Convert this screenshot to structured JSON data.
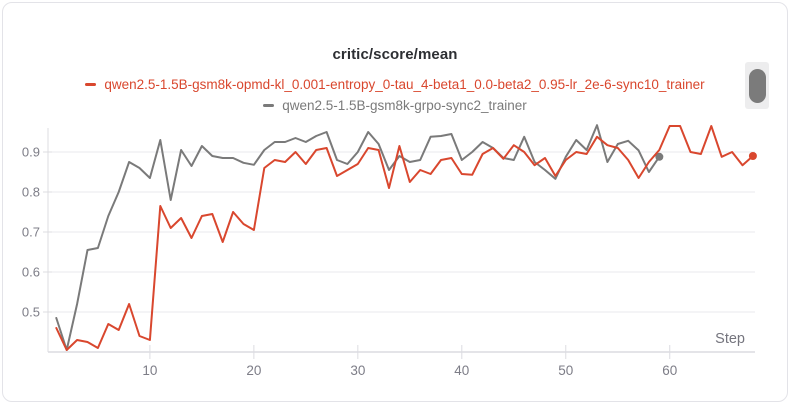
{
  "chart_data": {
    "type": "line",
    "title": "critic/score/mean",
    "xlabel": "Step",
    "ylabel": "",
    "x_ticks": [
      10,
      20,
      30,
      40,
      50,
      60
    ],
    "y_ticks": [
      0.5,
      0.6,
      0.7,
      0.8,
      0.9
    ],
    "xlim": [
      0.2,
      68.2
    ],
    "ylim": [
      0.4,
      0.96
    ],
    "grid": "horizontal",
    "legend_position": "top-center",
    "x_start": 1,
    "x_interval": 1,
    "series": [
      {
        "name": "qwen2.5-1.5B-gsm8k-opmd-kl_0.001-entropy_0-tau_4-beta1_0.0-beta2_0.95-lr_2e-6-sync10_trainer",
        "color": "#d9472e",
        "end_marker": true,
        "values": [
          0.46,
          0.405,
          0.43,
          0.425,
          0.41,
          0.47,
          0.455,
          0.52,
          0.44,
          0.43,
          0.765,
          0.71,
          0.735,
          0.685,
          0.74,
          0.745,
          0.675,
          0.75,
          0.72,
          0.705,
          0.86,
          0.88,
          0.875,
          0.9,
          0.87,
          0.905,
          0.91,
          0.84,
          0.855,
          0.87,
          0.91,
          0.905,
          0.81,
          0.915,
          0.825,
          0.855,
          0.845,
          0.88,
          0.885,
          0.845,
          0.843,
          0.895,
          0.91,
          0.883,
          0.917,
          0.9,
          0.867,
          0.885,
          0.84,
          0.88,
          0.9,
          0.895,
          0.938,
          0.917,
          0.91,
          0.88,
          0.835,
          0.875,
          0.905,
          0.965,
          0.965,
          0.9,
          0.895,
          0.965,
          0.888,
          0.9,
          0.867,
          0.89
        ]
      },
      {
        "name": "qwen2.5-1.5B-gsm8k-grpo-sync2_trainer",
        "color": "#7a7a7a",
        "end_marker": true,
        "values": [
          0.485,
          0.405,
          0.52,
          0.655,
          0.66,
          0.74,
          0.8,
          0.875,
          0.86,
          0.835,
          0.93,
          0.78,
          0.905,
          0.865,
          0.915,
          0.89,
          0.885,
          0.885,
          0.873,
          0.868,
          0.905,
          0.925,
          0.925,
          0.935,
          0.925,
          0.94,
          0.95,
          0.88,
          0.87,
          0.9,
          0.95,
          0.92,
          0.855,
          0.89,
          0.875,
          0.88,
          0.938,
          0.94,
          0.945,
          0.88,
          0.9,
          0.925,
          0.91,
          0.885,
          0.88,
          0.938,
          0.875,
          0.855,
          0.833,
          0.888,
          0.93,
          0.905,
          0.967,
          0.875,
          0.92,
          0.928,
          0.904,
          0.85,
          0.888
        ]
      }
    ]
  },
  "legend_scrollbar": {
    "present": true
  }
}
